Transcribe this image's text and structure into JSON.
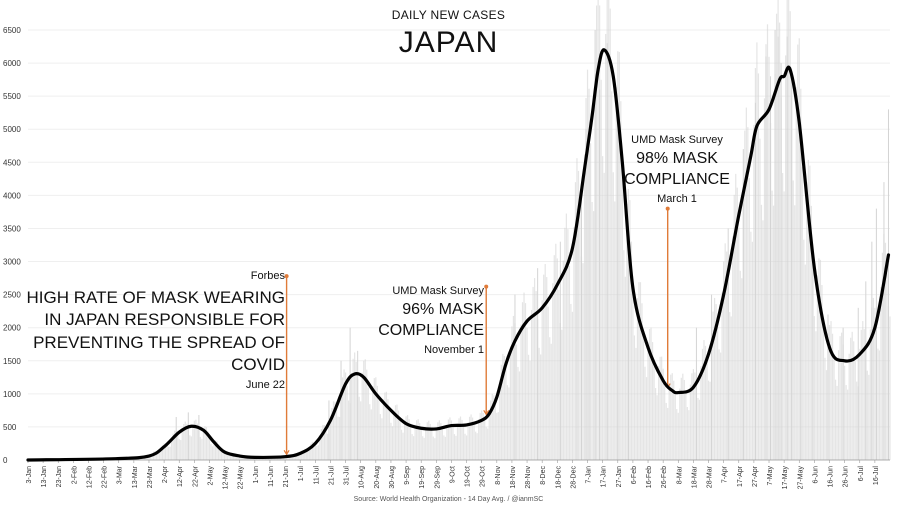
{
  "header": {
    "subtitle": "DAILY NEW CASES",
    "title": "JAPAN"
  },
  "source": "Source: World Health Organization - 14 Day Avg. / @ianmSC",
  "colors": {
    "line": "#000000",
    "bars": "#d4d4d4",
    "annotation": "#e07b39",
    "grid": "#efefef"
  },
  "annotations": {
    "forbes": {
      "source": "Forbes",
      "lines": [
        "HIGH RATE OF MASK WEARING",
        "IN JAPAN RESPONSIBLE FOR",
        "PREVENTING THE SPREAD OF",
        "COVID"
      ],
      "date": "June 22"
    },
    "nov": {
      "source": "UMD Mask Survey",
      "lines": [
        "96% MASK",
        "COMPLIANCE"
      ],
      "date": "November 1"
    },
    "mar": {
      "source": "UMD Mask Survey",
      "lines": [
        "98% MASK",
        "COMPLIANCE"
      ],
      "date": "March 1"
    }
  },
  "chart_data": {
    "type": "line",
    "title": "JAPAN",
    "subtitle": "DAILY NEW CASES",
    "ylim": [
      0,
      6500
    ],
    "yticks": [
      0,
      500,
      1000,
      1500,
      2000,
      2500,
      3000,
      3500,
      4000,
      4500,
      5000,
      5500,
      6000,
      6500
    ],
    "xlim": [
      "2020-01-03",
      "2021-07-26"
    ],
    "x_tick_labels": [
      "3-Jan",
      "13-Jan",
      "23-Jan",
      "2-Feb",
      "12-Feb",
      "22-Feb",
      "3-Mar",
      "13-Mar",
      "23-Mar",
      "2-Apr",
      "12-Apr",
      "22-Apr",
      "2-May",
      "12-May",
      "22-May",
      "1-Jun",
      "11-Jun",
      "21-Jun",
      "1-Jul",
      "11-Jul",
      "21-Jul",
      "31-Jul",
      "10-Aug",
      "20-Aug",
      "30-Aug",
      "9-Sep",
      "19-Sep",
      "29-Sep",
      "9-Oct",
      "19-Oct",
      "29-Oct",
      "8-Nov",
      "18-Nov",
      "28-Nov",
      "8-Dec",
      "18-Dec",
      "28-Dec",
      "7-Jan",
      "17-Jan",
      "27-Jan",
      "6-Feb",
      "16-Feb",
      "26-Feb",
      "8-Mar",
      "18-Mar",
      "28-Mar",
      "7-Apr",
      "17-Apr",
      "27-Apr",
      "7-May",
      "17-May",
      "27-May",
      "6-Jun",
      "16-Jun",
      "26-Jun",
      "6-Jul",
      "16-Jul"
    ],
    "x_tick_dates": [
      "2020-01-03",
      "2020-01-13",
      "2020-01-23",
      "2020-02-02",
      "2020-02-12",
      "2020-02-22",
      "2020-03-03",
      "2020-03-13",
      "2020-03-23",
      "2020-04-02",
      "2020-04-12",
      "2020-04-22",
      "2020-05-02",
      "2020-05-12",
      "2020-05-22",
      "2020-06-01",
      "2020-06-11",
      "2020-06-21",
      "2020-07-01",
      "2020-07-11",
      "2020-07-21",
      "2020-07-31",
      "2020-08-10",
      "2020-08-20",
      "2020-08-30",
      "2020-09-09",
      "2020-09-19",
      "2020-09-29",
      "2020-10-09",
      "2020-10-19",
      "2020-10-29",
      "2020-11-08",
      "2020-11-18",
      "2020-11-28",
      "2020-12-08",
      "2020-12-18",
      "2020-12-28",
      "2021-01-07",
      "2021-01-17",
      "2021-01-27",
      "2021-02-06",
      "2021-02-16",
      "2021-02-26",
      "2021-03-08",
      "2021-03-18",
      "2021-03-28",
      "2021-04-07",
      "2021-04-17",
      "2021-04-27",
      "2021-05-07",
      "2021-05-17",
      "2021-05-27",
      "2021-06-06",
      "2021-06-16",
      "2021-06-26",
      "2021-07-06",
      "2021-07-16"
    ],
    "series": [
      {
        "type": "line",
        "x": [
          "2020-01-03",
          "2020-03-01",
          "2020-03-23",
          "2020-04-02",
          "2020-04-12",
          "2020-04-20",
          "2020-04-28",
          "2020-05-05",
          "2020-05-12",
          "2020-05-22",
          "2020-06-01",
          "2020-06-21",
          "2020-07-01",
          "2020-07-11",
          "2020-07-21",
          "2020-07-31",
          "2020-08-06",
          "2020-08-12",
          "2020-08-20",
          "2020-08-30",
          "2020-09-09",
          "2020-09-19",
          "2020-09-29",
          "2020-10-09",
          "2020-10-19",
          "2020-10-29",
          "2020-11-03",
          "2020-11-08",
          "2020-11-14",
          "2020-11-20",
          "2020-11-28",
          "2020-12-08",
          "2020-12-18",
          "2020-12-28",
          "2021-01-05",
          "2021-01-10",
          "2021-01-14",
          "2021-01-18",
          "2021-01-24",
          "2021-01-30",
          "2021-02-06",
          "2021-02-16",
          "2021-02-26",
          "2021-03-04",
          "2021-03-08",
          "2021-03-18",
          "2021-03-28",
          "2021-04-07",
          "2021-04-17",
          "2021-04-25",
          "2021-04-29",
          "2021-05-07",
          "2021-05-14",
          "2021-05-17",
          "2021-05-21",
          "2021-05-27",
          "2021-06-06",
          "2021-06-16",
          "2021-06-26",
          "2021-07-06",
          "2021-07-16",
          "2021-07-25"
        ],
        "y": [
          0,
          20,
          60,
          200,
          420,
          510,
          450,
          270,
          120,
          60,
          40,
          50,
          100,
          250,
          600,
          1150,
          1300,
          1250,
          1000,
          750,
          550,
          480,
          470,
          520,
          530,
          600,
          700,
          950,
          1450,
          1800,
          2100,
          2300,
          2650,
          3200,
          4400,
          5200,
          5900,
          6200,
          5800,
          4500,
          2600,
          1700,
          1200,
          1050,
          1020,
          1100,
          1600,
          2500,
          3700,
          4600,
          5050,
          5300,
          5750,
          5800,
          5900,
          5100,
          2900,
          1700,
          1500,
          1600,
          2000,
          3100
        ]
      },
      {
        "type": "bar",
        "name": "daily",
        "x": [
          "2020-04-10",
          "2020-04-18",
          "2020-04-25",
          "2020-07-20",
          "2020-07-28",
          "2020-08-03",
          "2020-08-08",
          "2020-11-20",
          "2020-12-05",
          "2020-12-20",
          "2020-12-31",
          "2021-01-03",
          "2021-01-06",
          "2021-01-08",
          "2021-01-12",
          "2021-01-15",
          "2021-01-20",
          "2021-01-27",
          "2021-02-03",
          "2021-03-20",
          "2021-03-30",
          "2021-04-10",
          "2021-04-20",
          "2021-04-28",
          "2021-05-05",
          "2021-05-08",
          "2021-05-11",
          "2021-05-13",
          "2021-05-15",
          "2021-05-19",
          "2021-05-22",
          "2021-05-28",
          "2021-06-05",
          "2021-06-15",
          "2021-06-25",
          "2021-07-05",
          "2021-07-10",
          "2021-07-14",
          "2021-07-17",
          "2021-07-22",
          "2021-07-25"
        ],
        "y": [
          650,
          720,
          680,
          900,
          1500,
          2000,
          1650,
          2500,
          2900,
          3300,
          3800,
          4200,
          5000,
          4700,
          6500,
          5600,
          6300,
          5300,
          3400,
          2000,
          2500,
          3500,
          4700,
          5400,
          6100,
          5800,
          6500,
          6400,
          6000,
          6400,
          5900,
          5100,
          3200,
          2200,
          2000,
          2300,
          2700,
          3300,
          3800,
          4200,
          5300
        ]
      }
    ],
    "annotation_dates": [
      "2020-06-22",
      "2020-11-01",
      "2021-03-01"
    ]
  }
}
